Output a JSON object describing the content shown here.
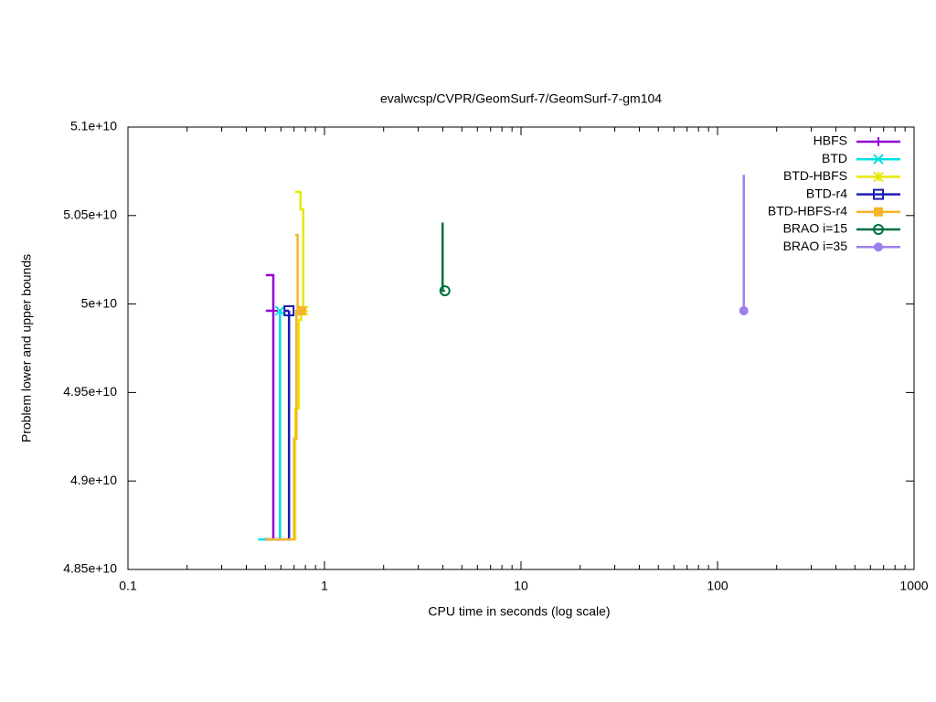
{
  "chart_data": {
    "type": "line",
    "title": "evalwcsp/CVPR/GeomSurf-7/GeomSurf-7-gm104",
    "xlabel": "CPU time in seconds (log scale)",
    "ylabel": "Problem lower and upper bounds",
    "xscale": "log",
    "xlim": [
      0.1,
      1000
    ],
    "xticks": [
      0.1,
      1,
      10,
      100,
      1000
    ],
    "ylim": [
      48500000000,
      51000000000
    ],
    "yticks": [
      {
        "value": 48500000000,
        "label": "4.85e+10"
      },
      {
        "value": 49000000000,
        "label": "4.9e+10"
      },
      {
        "value": 49500000000,
        "label": "4.95e+10"
      },
      {
        "value": 50000000000,
        "label": "5e+10"
      },
      {
        "value": 50500000000,
        "label": "5.05e+10"
      },
      {
        "value": 51000000000,
        "label": "5.1e+10"
      }
    ],
    "legend": "top-right",
    "series": [
      {
        "name": "HBFS",
        "color": "#9400d3",
        "marker": "plus",
        "x": [
          0.503,
          0.549,
          0.549,
          null,
          0.503,
          0.549,
          null,
          0.49,
          0.549,
          0.549
        ],
        "values": [
          50163000000,
          50163000000,
          49962000000,
          null,
          49962000000,
          49962000000,
          null,
          48670000000,
          48670000000,
          49962000000
        ]
      },
      {
        "name": "BTD",
        "color": "#00e0e0",
        "marker": "x",
        "x": [
          0.46,
          0.594,
          0.594
        ],
        "values": [
          48670000000,
          48670000000,
          49962000000
        ]
      },
      {
        "name": "BTD-HBFS",
        "color": "#e8e800",
        "marker": "star",
        "x": [
          0.71,
          0.755,
          0.755,
          0.78,
          0.78,
          null,
          0.69,
          0.71,
          0.71,
          0.74,
          0.74,
          0.76,
          0.76,
          0.78
        ],
        "values": [
          50633000000,
          50633000000,
          50535000000,
          50535000000,
          49962000000,
          null,
          48670000000,
          48670000000,
          49410000000,
          49410000000,
          49910000000,
          49910000000,
          49962000000,
          49962000000
        ]
      },
      {
        "name": "BTD-r4",
        "color": "#1c1cb4",
        "marker": "square-open",
        "x": [
          0.62,
          0.66,
          null,
          0.5,
          0.66,
          0.66
        ],
        "values": [
          49962000000,
          49962000000,
          null,
          48670000000,
          48670000000,
          49962000000
        ]
      },
      {
        "name": "BTD-HBFS-r4",
        "color": "#f7b52a",
        "marker": "square",
        "x": [
          0.71,
          0.73,
          0.73,
          null,
          0.5,
          0.7,
          0.7,
          0.72,
          0.72,
          0.765
        ],
        "values": [
          50390000000,
          50390000000,
          49962000000,
          null,
          48670000000,
          48670000000,
          49240000000,
          49240000000,
          49962000000,
          49962000000
        ]
      },
      {
        "name": "BRAO i=15",
        "color": "#00703c",
        "marker": "circle-open",
        "x": [
          3.99,
          3.99,
          4.1
        ],
        "values": [
          50460000000,
          50075000000,
          50075000000
        ]
      },
      {
        "name": "BRAO i=35",
        "color": "#9f7fef",
        "marker": "circle",
        "x": [
          136,
          136
        ],
        "values": [
          50730000000,
          49962000000
        ]
      }
    ]
  }
}
